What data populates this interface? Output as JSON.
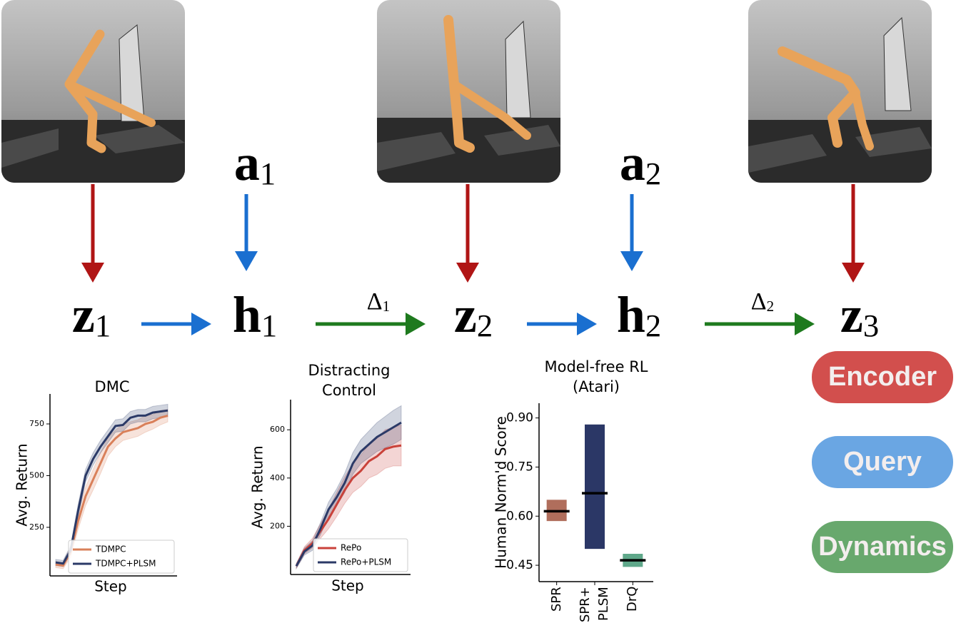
{
  "diagram": {
    "nodes": [
      {
        "symbol": "z",
        "index": "1"
      },
      {
        "symbol": "h",
        "index": "1"
      },
      {
        "symbol": "z",
        "index": "2"
      },
      {
        "symbol": "h",
        "index": "2"
      },
      {
        "symbol": "z",
        "index": "3"
      }
    ],
    "actions": [
      {
        "symbol": "a",
        "index": "1"
      },
      {
        "symbol": "a",
        "index": "2"
      }
    ],
    "deltas": [
      {
        "symbol": "Δ",
        "index": "1"
      },
      {
        "symbol": "Δ",
        "index": "2"
      }
    ],
    "legend": [
      {
        "label": "Encoder",
        "color": "#d24f4d"
      },
      {
        "label": "Query",
        "color": "#6aa6e3"
      },
      {
        "label": "Dynamics",
        "color": "#68a86d"
      }
    ]
  },
  "chart_data": [
    {
      "type": "line",
      "title": "DMC",
      "x_label": "Step",
      "y_label": "Avg. Return",
      "categories": [
        null,
        null,
        null,
        null,
        null,
        null,
        null,
        null,
        null,
        null,
        null,
        null,
        null,
        null,
        null,
        null
      ],
      "ylim": [
        15,
        895
      ],
      "yticks": [
        250,
        500,
        750
      ],
      "legend": "lower right",
      "series": [
        {
          "name": "TDMPC",
          "color": "#d9805a",
          "values": [
            70,
            65,
            130,
            280,
            400,
            480,
            560,
            640,
            680,
            710,
            720,
            730,
            750,
            760,
            780,
            790
          ],
          "lower": [
            55,
            50,
            105,
            240,
            355,
            430,
            510,
            595,
            640,
            670,
            680,
            690,
            710,
            725,
            745,
            760
          ],
          "upper": [
            85,
            80,
            155,
            320,
            445,
            530,
            610,
            685,
            720,
            750,
            760,
            770,
            790,
            795,
            815,
            820
          ]
        },
        {
          "name": "TDMPC+PLSM",
          "color": "#2b3a67",
          "values": [
            80,
            75,
            140,
            330,
            500,
            580,
            640,
            690,
            740,
            745,
            780,
            790,
            790,
            805,
            810,
            815
          ],
          "lower": [
            65,
            60,
            120,
            300,
            470,
            550,
            610,
            660,
            710,
            715,
            750,
            760,
            760,
            775,
            780,
            785
          ],
          "upper": [
            95,
            90,
            160,
            360,
            530,
            610,
            670,
            720,
            770,
            775,
            810,
            820,
            820,
            835,
            840,
            845
          ]
        }
      ]
    },
    {
      "type": "line",
      "title": "Distracting\nControl",
      "x_label": "Step",
      "y_label": "Avg. Return",
      "categories": [
        null,
        null,
        null,
        null,
        null,
        null,
        null,
        null,
        null,
        null,
        null,
        null,
        null,
        null
      ],
      "ylim": [
        0,
        725
      ],
      "yticks": [
        200,
        400,
        600
      ],
      "legend": "lower right",
      "series": [
        {
          "name": "RePo",
          "color": "#c9423a",
          "values": [
            35,
            100,
            130,
            180,
            230,
            290,
            350,
            400,
            430,
            470,
            490,
            520,
            530,
            535
          ],
          "lower": [
            25,
            85,
            110,
            150,
            190,
            240,
            295,
            340,
            365,
            400,
            415,
            440,
            450,
            450
          ],
          "upper": [
            45,
            115,
            150,
            210,
            270,
            340,
            405,
            460,
            495,
            540,
            565,
            600,
            610,
            620
          ]
        },
        {
          "name": "RePo+PLSM",
          "color": "#2b3a67",
          "values": [
            35,
            95,
            120,
            190,
            270,
            320,
            380,
            460,
            510,
            540,
            570,
            590,
            610,
            630
          ],
          "lower": [
            25,
            80,
            100,
            165,
            240,
            285,
            340,
            415,
            460,
            485,
            510,
            525,
            540,
            560
          ],
          "upper": [
            45,
            110,
            140,
            215,
            300,
            355,
            420,
            505,
            560,
            595,
            630,
            655,
            680,
            700
          ]
        }
      ]
    },
    {
      "type": "range-bar",
      "title": "Model-free RL\n(Atari)",
      "y_label": "Human Norm'd Score",
      "categories": [
        "SPR",
        "SPR+\nPLSM",
        "DrQ"
      ],
      "values": [
        0.615,
        0.67,
        0.465
      ],
      "low": [
        0.585,
        0.5,
        0.445
      ],
      "high": [
        0.65,
        0.88,
        0.485
      ],
      "colors": [
        "#b06e5c",
        "#2b3766",
        "#5fa88a"
      ],
      "ylim": [
        0.4,
        0.945
      ],
      "yticks": [
        0.45,
        {
          "value": 0.6,
          "label": "0.60"
        },
        0.75,
        {
          "value": 0.9,
          "label": "0.90"
        }
      ]
    }
  ]
}
